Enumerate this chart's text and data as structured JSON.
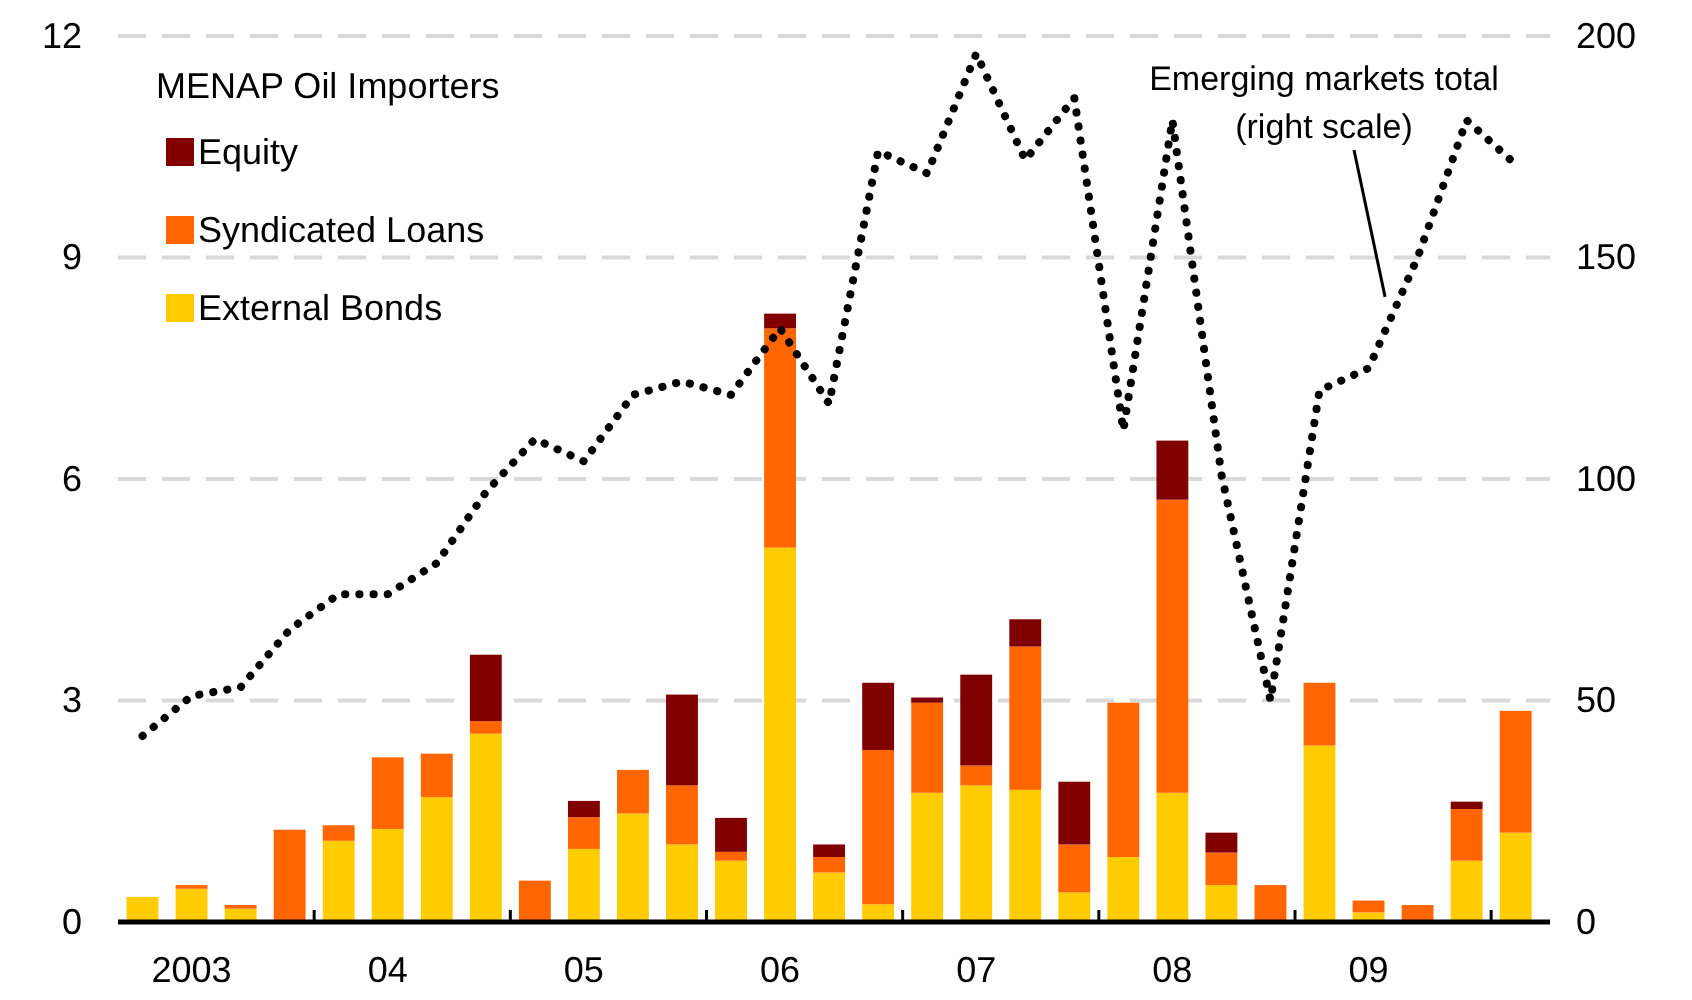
{
  "chart_data": {
    "type": "bar",
    "stacked": true,
    "legend_title": "MENAP Oil Importers",
    "legend": "top left",
    "grid": "y",
    "categories": [
      null,
      "2003",
      null,
      null,
      null,
      "04",
      null,
      null,
      null,
      "05",
      null,
      null,
      null,
      "06",
      null,
      null,
      null,
      "07",
      null,
      null,
      null,
      "08",
      null,
      null,
      null,
      "09",
      null,
      null,
      null
    ],
    "ylim": [
      0,
      12
    ],
    "yticks": [
      0,
      3,
      6,
      9,
      12
    ],
    "y2lim": [
      0,
      200
    ],
    "y2ticks": [
      0,
      50,
      100,
      150,
      200
    ],
    "series": [
      {
        "name": "External Bonds",
        "color": "#ffcc00",
        "values": [
          0.34,
          0.45,
          0.18,
          0,
          1.1,
          1.26,
          1.69,
          2.55,
          0,
          0.99,
          1.47,
          1.05,
          0.83,
          5.07,
          0.67,
          0.24,
          1.75,
          1.85,
          1.79,
          0.4,
          0.88,
          1.75,
          0.5,
          0,
          2.39,
          0.13,
          0,
          0.83,
          1.21
        ]
      },
      {
        "name": "Syndicated Loans",
        "color": "#ff6600",
        "values": [
          0,
          0.05,
          0.05,
          1.25,
          0.21,
          0.97,
          0.59,
          0.17,
          0.56,
          0.43,
          0.59,
          0.8,
          0.12,
          2.97,
          0.21,
          2.09,
          1.22,
          0.27,
          1.94,
          0.65,
          2.09,
          3.97,
          0.44,
          0.5,
          0.85,
          0.16,
          0.23,
          0.7,
          1.65
        ]
      },
      {
        "name": "Equity",
        "color": "#800000",
        "values": [
          0,
          0,
          0,
          0,
          0,
          0,
          0,
          0.9,
          0,
          0.22,
          0,
          1.23,
          0.46,
          0.2,
          0.17,
          0.91,
          0.07,
          1.23,
          0.37,
          0.85,
          0,
          0.8,
          0.27,
          0,
          0,
          0,
          0,
          0.1,
          0
        ]
      },
      {
        "name": "Emerging markets total\n(right scale)",
        "type": "line",
        "axis": "y2",
        "color": "#000000",
        "line_style": "dotted",
        "values": [
          42,
          51,
          53,
          66,
          74,
          74,
          81,
          97,
          109,
          104,
          119,
          122,
          119,
          134,
          117,
          174,
          169,
          196,
          172,
          186,
          111,
          181,
          101,
          50,
          120,
          125,
          150,
          181,
          171
        ]
      }
    ]
  }
}
